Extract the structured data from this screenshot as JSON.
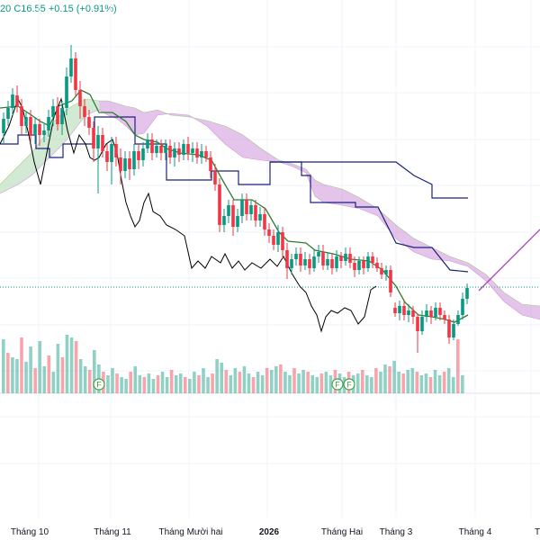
{
  "legend": {
    "fragment": "20",
    "close": "C16.55",
    "change": "+0.15 (+0.91%)"
  },
  "x_labels": [
    "Tháng 10",
    "Tháng 11",
    "Tháng Mười hai",
    "2026",
    "Tháng Hai",
    "Tháng 3",
    "Tháng 4",
    "T"
  ],
  "event_markers": [
    "F",
    "F",
    "F"
  ],
  "colors": {
    "up": "#089981",
    "down": "#f23645",
    "cloud_bull": "#a5d6a7",
    "cloud_bear": "#ce93d8",
    "tenkan": "#2e7d32",
    "kijun": "#1a237e",
    "chikou": "#000000",
    "trendline": "#ab47bc",
    "grid": "#f0f3fa",
    "dotted_price_line": "#089981"
  },
  "chart_data": {
    "type": "candlestick",
    "title": "",
    "last_close": 16.55,
    "last_change": 0.15,
    "last_change_pct": 0.91,
    "indicators": [
      "Ichimoku Cloud",
      "Volume"
    ],
    "x": [
      "Tháng 10",
      "Tháng 11",
      "Tháng Mười hai",
      "2026",
      "Tháng Hai",
      "Tháng 3",
      "Tháng 4"
    ],
    "grid": true,
    "legend_position": "top-left"
  }
}
